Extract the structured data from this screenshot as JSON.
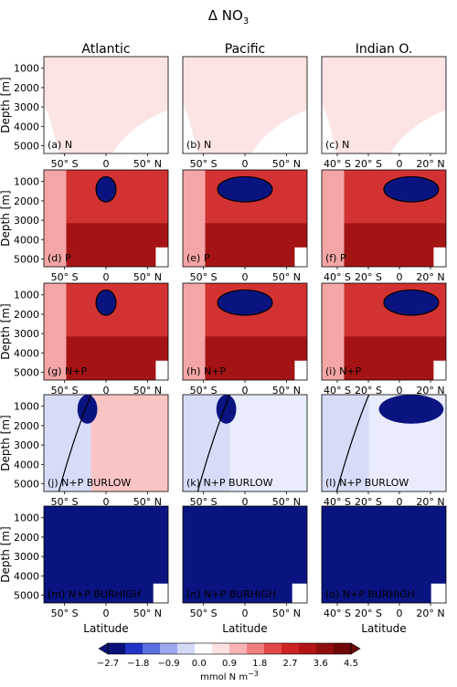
{
  "title": "Δ NO",
  "title_sub": "3",
  "chart_data": {
    "type": "heatmap",
    "columns": [
      "Atlantic",
      "Pacific",
      "Indian O."
    ],
    "ylabel": "Depth [m]",
    "xlabel": "Latitude",
    "depth_ticks": [
      "1000",
      "2000",
      "3000",
      "4000",
      "5000"
    ],
    "x_ticks": {
      "Atlantic": [
        "50° S",
        "0",
        "50° N"
      ],
      "Pacific": [
        "50° S",
        "0",
        "50° N"
      ],
      "Indian O.": [
        "40° S",
        "20° S",
        "0",
        "20° N"
      ]
    },
    "panels": [
      {
        "label": "(a)",
        "scenario": "N",
        "ocean": "Atlantic",
        "pattern": "weak"
      },
      {
        "label": "(b)",
        "scenario": "N",
        "ocean": "Pacific",
        "pattern": "weak"
      },
      {
        "label": "(c)",
        "scenario": "N",
        "ocean": "Indian O.",
        "pattern": "weak"
      },
      {
        "label": "(d)",
        "scenario": "P",
        "ocean": "Atlantic",
        "pattern": "strong_pos"
      },
      {
        "label": "(e)",
        "scenario": "P",
        "ocean": "Pacific",
        "pattern": "strong_pos"
      },
      {
        "label": "(f)",
        "scenario": "P",
        "ocean": "Indian O.",
        "pattern": "strong_pos"
      },
      {
        "label": "(g)",
        "scenario": "N+P",
        "ocean": "Atlantic",
        "pattern": "strong_pos"
      },
      {
        "label": "(h)",
        "scenario": "N+P",
        "ocean": "Pacific",
        "pattern": "strong_pos"
      },
      {
        "label": "(i)",
        "scenario": "N+P",
        "ocean": "Indian O.",
        "pattern": "strong_pos"
      },
      {
        "label": "(j)",
        "scenario": "N+P BURLOW",
        "ocean": "Atlantic",
        "pattern": "mixed"
      },
      {
        "label": "(k)",
        "scenario": "N+P BURLOW",
        "ocean": "Pacific",
        "pattern": "mixed"
      },
      {
        "label": "(l)",
        "scenario": "N+P BURLOW",
        "ocean": "Indian O.",
        "pattern": "mixed"
      },
      {
        "label": "(m)",
        "scenario": "N+P BURHIGH",
        "ocean": "Atlantic",
        "pattern": "strong_neg"
      },
      {
        "label": "(n)",
        "scenario": "N+P BURHIGH",
        "ocean": "Pacific",
        "pattern": "strong_neg"
      },
      {
        "label": "(o)",
        "scenario": "N+P BURHIGH",
        "ocean": "Indian O.",
        "pattern": "strong_neg"
      }
    ],
    "colorbar": {
      "ticks": [
        "−2.7",
        "−1.8",
        "−0.9",
        "0.0",
        "0.9",
        "1.8",
        "2.7",
        "3.6",
        "4.5"
      ],
      "min": -2.7,
      "max": 4.5,
      "unit_text": "mmol N m",
      "unit_sup": "−3",
      "colors": [
        "#08127a",
        "#2233c8",
        "#5a6fe0",
        "#9aa8ef",
        "#d4daf8",
        "#ffffff",
        "#fde0e0",
        "#f8b4b4",
        "#f07e7e",
        "#e34848",
        "#cf2323",
        "#b31515",
        "#8f0e0e",
        "#6e0808"
      ]
    }
  }
}
